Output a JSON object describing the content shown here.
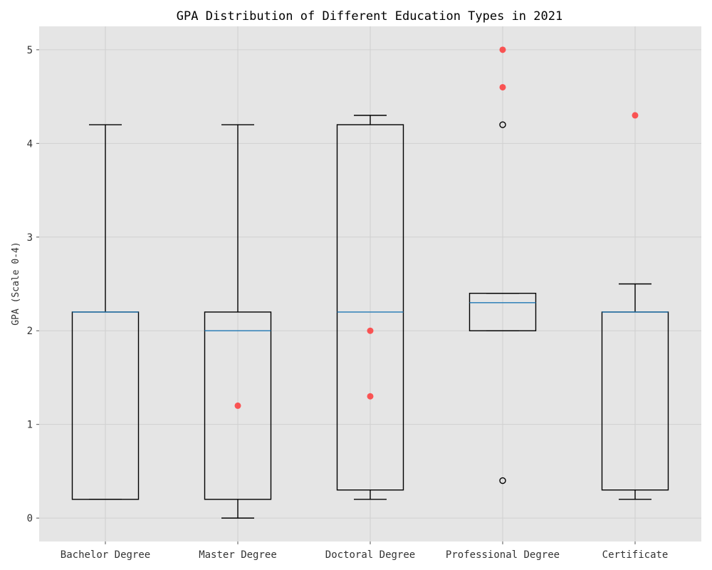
{
  "chart_data": {
    "type": "boxplot",
    "title": "GPA Distribution of Different Education Types in 2021",
    "xlabel": "",
    "ylabel": "GPA (Scale 0-4)",
    "ylim": [
      -0.25,
      5.25
    ],
    "yticks": [
      0,
      1,
      2,
      3,
      4,
      5
    ],
    "grid": true,
    "colors": {
      "background": "#e5e5e5",
      "grid": "#d0d0d0",
      "box": "#000000",
      "median": "#1f77b4",
      "highlight_point": "#ff3030"
    },
    "categories": [
      "Bachelor Degree",
      "Master Degree",
      "Doctoral Degree",
      "Professional Degree",
      "Certificate"
    ],
    "boxes": [
      {
        "category": "Bachelor Degree",
        "whisker_low": 0.2,
        "q1": 0.2,
        "median": 2.2,
        "q3": 2.2,
        "whisker_high": 4.2,
        "fliers": []
      },
      {
        "category": "Master Degree",
        "whisker_low": 0.0,
        "q1": 0.2,
        "median": 2.0,
        "q3": 2.2,
        "whisker_high": 4.2,
        "fliers": []
      },
      {
        "category": "Doctoral Degree",
        "whisker_low": 0.2,
        "q1": 0.3,
        "median": 2.2,
        "q3": 4.2,
        "whisker_high": 4.3,
        "fliers": []
      },
      {
        "category": "Professional Degree",
        "whisker_low": 2.0,
        "q1": 2.0,
        "median": 2.3,
        "q3": 2.4,
        "whisker_high": 2.4,
        "fliers": [
          4.2,
          0.4
        ]
      },
      {
        "category": "Certificate",
        "whisker_low": 0.2,
        "q1": 0.3,
        "median": 2.2,
        "q3": 2.2,
        "whisker_high": 2.5,
        "fliers": []
      }
    ],
    "highlighted_points": [
      {
        "category": "Master Degree",
        "value": 1.2
      },
      {
        "category": "Doctoral Degree",
        "value": 2.0
      },
      {
        "category": "Doctoral Degree",
        "value": 1.3
      },
      {
        "category": "Professional Degree",
        "value": 5.0
      },
      {
        "category": "Professional Degree",
        "value": 4.6
      },
      {
        "category": "Certificate",
        "value": 4.3
      }
    ]
  }
}
